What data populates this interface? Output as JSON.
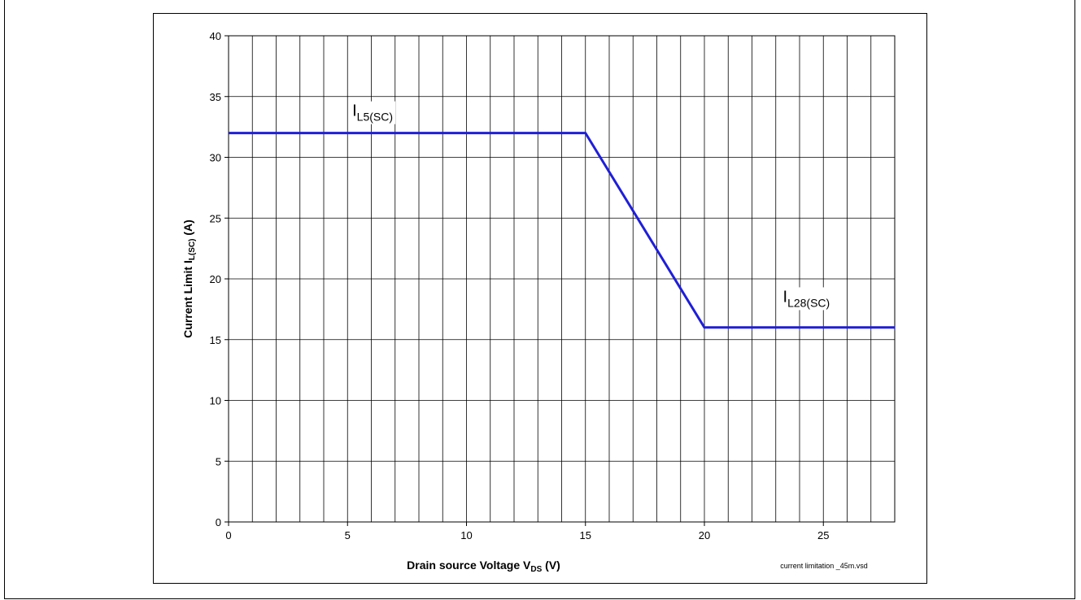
{
  "chart_data": {
    "type": "line",
    "title": "",
    "xlabel": {
      "main": "Drain source Voltage V",
      "sub": "DS",
      "tail": " (V)"
    },
    "ylabel": {
      "main": "Current Limit I",
      "sub": "L(SC)",
      "tail": " (A)"
    },
    "xlim": [
      0,
      28
    ],
    "ylim": [
      0,
      40
    ],
    "x_ticks": [
      0,
      5,
      10,
      15,
      20,
      25
    ],
    "y_ticks": [
      0,
      5,
      10,
      15,
      20,
      25,
      30,
      35,
      40
    ],
    "x_grid_step": 1,
    "y_grid_step": 5,
    "grid": true,
    "series": [
      {
        "color": "#1f1fd6",
        "x": [
          0,
          15,
          20,
          28
        ],
        "y": [
          32,
          32,
          16,
          16
        ]
      }
    ],
    "annotations": [
      {
        "main": "I",
        "sub": "L5(SC)",
        "x": 5.2,
        "y": 33.4
      },
      {
        "main": "I",
        "sub": "L28(SC)",
        "x": 23.3,
        "y": 18.1
      }
    ],
    "footnote": "current limitation _45m.vsd"
  }
}
